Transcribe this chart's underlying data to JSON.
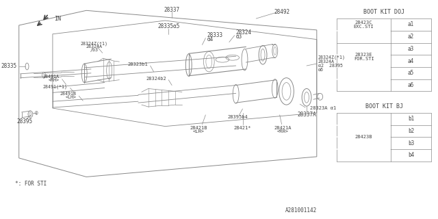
{
  "bg_color": "#ffffff",
  "line_color": "#888888",
  "text_color": "#444444",
  "title_ref": "A281001142",
  "sti_note": "*: FOR STI",
  "table1_title": "BOOT KIT DOJ",
  "table2_title": "BOOT KIT BJ",
  "table1_col2": [
    "a1",
    "a2",
    "a3",
    "a4",
    "a5",
    "a6"
  ],
  "table2_col2": [
    "b1",
    "b2",
    "b3",
    "b4"
  ],
  "figsize": [
    6.4,
    3.2
  ],
  "dpi": 100
}
